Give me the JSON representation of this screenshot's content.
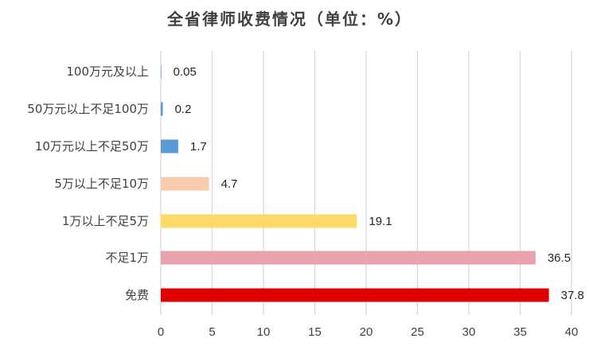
{
  "chart_data": {
    "type": "bar",
    "orientation": "horizontal",
    "title": "全省律师收费情况（单位：%）",
    "xlabel": "",
    "ylabel": "",
    "xlim": [
      0,
      40
    ],
    "x_ticks": [
      0,
      5,
      10,
      15,
      20,
      25,
      30,
      35,
      40
    ],
    "grid": true,
    "legend": "none",
    "categories": [
      "100万元及以上",
      "50万元以上不足100万",
      "10万元以上不足50万",
      "5万以上不足10万",
      "1万以上不足5万",
      "不足1万",
      "免费"
    ],
    "values": [
      0.05,
      0.2,
      1.7,
      4.7,
      19.1,
      36.5,
      37.8
    ],
    "value_labels": [
      "0.05",
      "0.2",
      "1.7",
      "4.7",
      "19.1",
      "36.5",
      "37.8"
    ],
    "colors": [
      "#5b9bd5",
      "#5b9bd5",
      "#5b9bd5",
      "#f8cbad",
      "#ffd966",
      "#e8a2ad",
      "#e00000"
    ]
  }
}
